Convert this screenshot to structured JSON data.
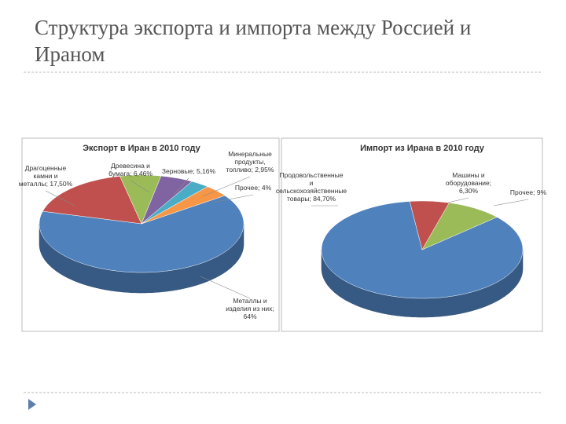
{
  "title": "Структура экспорта и импорта между Россией и Ираном",
  "chart_data": [
    {
      "type": "pie",
      "title": "Экспорт в Иран в 2010 году",
      "values": [
        64,
        17.5,
        6.46,
        5.16,
        2.95,
        4
      ],
      "value_labels": [
        "Металлы и изделия из них; 64%",
        "Драгоценные камни и металлы; 17,50%",
        "Древесина и бумага; 6,46%",
        "Зерновые; 5,16%",
        "Минеральные продукты, топливо; 2,95%",
        "Прочее; 4%"
      ],
      "colors": [
        "#4f81bd",
        "#c0504d",
        "#9bbb59",
        "#8064a2",
        "#4bacc6",
        "#f79646"
      ]
    },
    {
      "type": "pie",
      "title": "Импорт из Ирана в 2010 году",
      "values": [
        84.7,
        6.3,
        9
      ],
      "value_labels": [
        "Продовольственные и сельскохозяйственные товары; 84,70%",
        "Машины и оборудование; 6,30%",
        "Прочее; 9%"
      ],
      "colors": [
        "#4f81bd",
        "#c0504d",
        "#9bbb59"
      ]
    }
  ]
}
